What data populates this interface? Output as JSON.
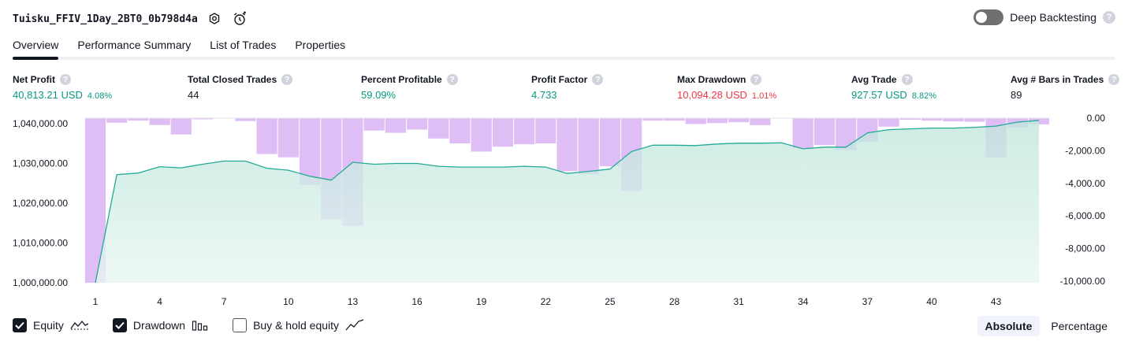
{
  "header": {
    "title": "Tuisku_FFIV_1Day_2BT0_0b798d4a",
    "deep_backtesting_label": "Deep Backtesting",
    "help_mark": "?"
  },
  "tabs": [
    {
      "label": "Overview",
      "active": true
    },
    {
      "label": "Performance Summary",
      "active": false
    },
    {
      "label": "List of Trades",
      "active": false
    },
    {
      "label": "Properties",
      "active": false
    }
  ],
  "stats": {
    "net_profit": {
      "label": "Net Profit",
      "value": "40,813.21 USD",
      "pct": "4.08%"
    },
    "total_closed_trades": {
      "label": "Total Closed Trades",
      "value": "44"
    },
    "percent_profitable": {
      "label": "Percent Profitable",
      "value": "59.09%"
    },
    "profit_factor": {
      "label": "Profit Factor",
      "value": "4.733"
    },
    "max_drawdown": {
      "label": "Max Drawdown",
      "value": "10,094.28 USD",
      "pct": "1.01%"
    },
    "avg_trade": {
      "label": "Avg Trade",
      "value": "927.57 USD",
      "pct": "8.82%"
    },
    "avg_bars": {
      "label": "Avg # Bars in Trades",
      "value": "89"
    }
  },
  "chart_data": {
    "type": "line",
    "x": [
      1,
      2,
      3,
      4,
      5,
      6,
      7,
      8,
      9,
      10,
      11,
      12,
      13,
      14,
      15,
      16,
      17,
      18,
      19,
      20,
      21,
      22,
      23,
      24,
      25,
      26,
      27,
      28,
      29,
      30,
      31,
      32,
      33,
      34,
      35,
      36,
      37,
      38,
      39,
      40,
      41,
      42,
      43,
      44,
      45
    ],
    "x_tick_labels": [
      "1",
      "4",
      "7",
      "10",
      "13",
      "16",
      "19",
      "22",
      "25",
      "28",
      "31",
      "34",
      "37",
      "40",
      "43"
    ],
    "left_axis": {
      "ylim": [
        1000000,
        1041000
      ],
      "tick_labels": [
        "1,040,000.00",
        "1,030,000.00",
        "1,020,000.00",
        "1,010,000.00",
        "1,000,000.00"
      ]
    },
    "right_axis": {
      "ylim": [
        -10094.28,
        0
      ],
      "tick_labels": [
        "0.00",
        "-2,000.00",
        "-4,000.00",
        "-6,000.00",
        "-8,000.00",
        "-10,000.00"
      ]
    },
    "series": [
      {
        "name": "Equity",
        "axis": "left",
        "color": "#22ab94",
        "values": [
          1000000,
          1027200,
          1027600,
          1029200,
          1028900,
          1029800,
          1030600,
          1030600,
          1028800,
          1028300,
          1026800,
          1025800,
          1030300,
          1029800,
          1030000,
          1030000,
          1029300,
          1029100,
          1029100,
          1029100,
          1029300,
          1029100,
          1027500,
          1028000,
          1028600,
          1033000,
          1034600,
          1034600,
          1034500,
          1034900,
          1035100,
          1035100,
          1035200,
          1033700,
          1034100,
          1034100,
          1037700,
          1038500,
          1038700,
          1038900,
          1038900,
          1039100,
          1039400,
          1040400,
          1040813
        ]
      },
      {
        "name": "Drawdown",
        "axis": "right",
        "color": "#d9b3f5",
        "values": [
          -10094,
          -280,
          -150,
          -420,
          -1000,
          -70,
          0,
          -180,
          -2200,
          -2400,
          -4100,
          -6200,
          -6600,
          -760,
          -900,
          -700,
          -1250,
          -1550,
          -2050,
          -1750,
          -1600,
          -1550,
          -3250,
          -3450,
          -2950,
          -4450,
          -150,
          -150,
          -360,
          -300,
          -250,
          -430,
          0,
          -1850,
          -1650,
          -1950,
          -1450,
          -520,
          -100,
          -150,
          -200,
          -220,
          -2400,
          -560,
          -380
        ]
      }
    ]
  },
  "legend": {
    "equity": {
      "label": "Equity",
      "checked": true
    },
    "drawdown": {
      "label": "Drawdown",
      "checked": true
    },
    "buy_hold": {
      "label": "Buy & hold equity",
      "checked": false
    }
  },
  "modes": {
    "absolute": "Absolute",
    "percentage": "Percentage",
    "active": "absolute"
  }
}
